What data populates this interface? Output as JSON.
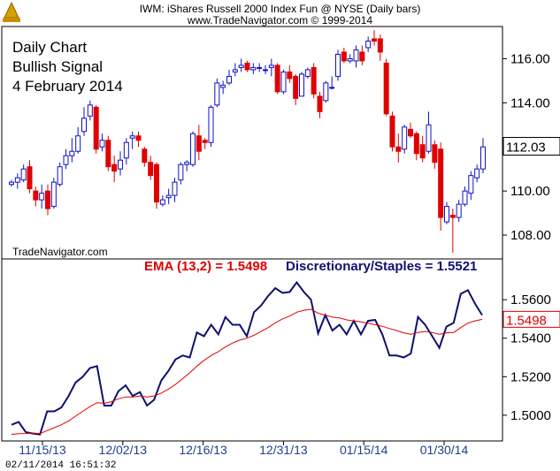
{
  "header": {
    "title": "IWM:  iShares Russell 2000 Index Fun @ NYSE  (Daily bars)",
    "copyright": "www.TradeNavigator.com © 1999-2014"
  },
  "annotation": {
    "line1": "Daily Chart",
    "line2": "Bullish Signal",
    "line3": "4 February 2014"
  },
  "watermark": "TradeNavigator.com",
  "timestamp": "02/11/2014 16:51:32",
  "colors": {
    "up": "#1010c8",
    "down": "#e00000",
    "ratio_line": "#101070",
    "ema_line": "#e00000"
  },
  "chart_data": [
    {
      "type": "candlestick",
      "title": "IWM:  iShares Russell 2000 Index Fun @ NYSE  (Daily bars)",
      "ylim": [
        107,
        117.3
      ],
      "yticks": [
        "116.00",
        "114.00",
        "112.00",
        "110.00",
        "108.00"
      ],
      "last_price_label": "112.03",
      "last_price": 112.03,
      "bars": [
        [
          110.3,
          110.5,
          110.2,
          110.4
        ],
        [
          110.4,
          110.8,
          110.1,
          110.6
        ],
        [
          110.5,
          111.2,
          110.4,
          111.0
        ],
        [
          111.1,
          111.4,
          109.9,
          110.1
        ],
        [
          110.0,
          110.2,
          109.3,
          109.6
        ],
        [
          109.6,
          110.3,
          109.2,
          109.9
        ],
        [
          110.0,
          110.3,
          108.9,
          109.2
        ],
        [
          109.3,
          110.6,
          109.2,
          110.4
        ],
        [
          110.3,
          111.3,
          110.2,
          111.1
        ],
        [
          111.2,
          111.9,
          111.0,
          111.6
        ],
        [
          111.6,
          112.4,
          111.3,
          111.8
        ],
        [
          111.8,
          112.9,
          111.7,
          112.5
        ],
        [
          112.7,
          113.8,
          112.5,
          113.3
        ],
        [
          113.4,
          114.1,
          113.2,
          113.9
        ],
        [
          113.8,
          113.9,
          111.7,
          111.9
        ],
        [
          112.0,
          112.6,
          111.8,
          112.3
        ],
        [
          112.3,
          112.5,
          110.9,
          111.1
        ],
        [
          111.2,
          111.6,
          110.4,
          110.9
        ],
        [
          111.0,
          111.8,
          110.7,
          111.4
        ],
        [
          111.5,
          112.4,
          111.2,
          112.2
        ],
        [
          112.4,
          112.7,
          111.9,
          112.5
        ],
        [
          112.5,
          112.7,
          112.0,
          112.3
        ],
        [
          111.9,
          112.0,
          111.1,
          111.3
        ],
        [
          111.3,
          111.6,
          110.5,
          110.7
        ],
        [
          111.2,
          111.3,
          109.2,
          109.5
        ],
        [
          109.4,
          109.8,
          109.3,
          109.6
        ],
        [
          109.7,
          110.1,
          109.4,
          109.8
        ],
        [
          109.8,
          110.6,
          109.5,
          110.4
        ],
        [
          110.5,
          111.3,
          110.3,
          111.2
        ],
        [
          111.2,
          111.4,
          110.9,
          111.3
        ],
        [
          111.2,
          112.7,
          111.1,
          112.6
        ],
        [
          112.5,
          113.0,
          111.4,
          111.8
        ],
        [
          112.3,
          112.4,
          111.9,
          112.2
        ],
        [
          112.2,
          113.9,
          112.0,
          113.8
        ],
        [
          113.9,
          115.1,
          113.8,
          114.9
        ],
        [
          114.7,
          115.0,
          114.4,
          114.8
        ],
        [
          114.9,
          115.5,
          114.8,
          115.2
        ],
        [
          115.4,
          115.8,
          115.2,
          115.5
        ],
        [
          115.6,
          116.0,
          115.4,
          115.7
        ],
        [
          115.8,
          115.9,
          115.4,
          115.5
        ],
        [
          115.5,
          115.8,
          115.3,
          115.6
        ],
        [
          115.6,
          115.8,
          115.4,
          115.6
        ],
        [
          115.5,
          115.7,
          115.3,
          115.5
        ],
        [
          115.6,
          116.0,
          115.2,
          115.7
        ],
        [
          115.7,
          115.8,
          114.4,
          114.5
        ],
        [
          114.5,
          115.5,
          114.4,
          115.4
        ],
        [
          115.4,
          115.7,
          114.9,
          115.1
        ],
        [
          115.2,
          115.3,
          113.9,
          114.2
        ],
        [
          114.3,
          115.4,
          114.3,
          115.3
        ],
        [
          115.2,
          115.6,
          115.1,
          115.5
        ],
        [
          115.6,
          115.8,
          114.2,
          114.4
        ],
        [
          114.3,
          114.5,
          113.3,
          113.6
        ],
        [
          114.1,
          115.0,
          114.0,
          114.9
        ],
        [
          114.7,
          115.2,
          114.6,
          114.7
        ],
        [
          115.2,
          116.4,
          115.0,
          116.2
        ],
        [
          116.3,
          116.5,
          115.8,
          115.9
        ],
        [
          115.9,
          116.2,
          115.8,
          116.0
        ],
        [
          115.9,
          116.6,
          115.6,
          116.4
        ],
        [
          116.3,
          116.6,
          115.7,
          115.9
        ],
        [
          116.5,
          117.0,
          116.3,
          116.8
        ],
        [
          116.9,
          117.3,
          116.6,
          116.8
        ],
        [
          116.9,
          117.1,
          115.9,
          116.3
        ],
        [
          115.8,
          116.0,
          113.4,
          113.5
        ],
        [
          113.4,
          113.6,
          111.8,
          112.0
        ],
        [
          112.0,
          112.6,
          111.3,
          111.8
        ],
        [
          111.9,
          113.0,
          111.7,
          112.9
        ],
        [
          112.8,
          113.1,
          112.4,
          112.5
        ],
        [
          112.6,
          112.7,
          111.4,
          111.7
        ],
        [
          112.1,
          112.5,
          111.3,
          111.5
        ],
        [
          111.8,
          113.6,
          111.7,
          113.0
        ],
        [
          112.1,
          112.3,
          111.0,
          111.3
        ],
        [
          111.9,
          112.2,
          108.2,
          108.8
        ],
        [
          108.6,
          109.5,
          108.5,
          109.3
        ],
        [
          108.9,
          109.2,
          107.2,
          108.8
        ],
        [
          108.8,
          109.6,
          108.6,
          109.4
        ],
        [
          109.4,
          110.2,
          109.3,
          110.0
        ],
        [
          109.9,
          110.9,
          109.6,
          110.7
        ],
        [
          110.6,
          111.2,
          110.4,
          111.0
        ],
        [
          111.0,
          112.4,
          110.8,
          112.0
        ]
      ]
    },
    {
      "type": "line",
      "legend": [
        "EMA (13,2) = 1.5498",
        "Discretionary/Staples = 1.5521"
      ],
      "ylim": [
        1.488,
        1.572
      ],
      "yticks": [
        "1.5600",
        "1.5400",
        "1.5200",
        "1.5000"
      ],
      "last_value_label": "1.5498",
      "last_value": 1.5498,
      "xticks": [
        "11/15/13",
        "12/02/13",
        "12/16/13",
        "12/31/13",
        "01/15/14",
        "01/30/14"
      ],
      "series": [
        {
          "name": "Discretionary/Staples",
          "values": [
            1.495,
            1.4965,
            1.4912,
            1.4905,
            1.49,
            1.502,
            1.502,
            1.504,
            1.51,
            1.517,
            1.52,
            1.5245,
            1.5255,
            1.505,
            1.505,
            1.5125,
            1.5155,
            1.51,
            1.512,
            1.505,
            1.508,
            1.518,
            1.523,
            1.529,
            1.531,
            1.53,
            1.543,
            1.541,
            1.547,
            1.542,
            1.551,
            1.547,
            1.547,
            1.541,
            1.5535,
            1.557,
            1.562,
            1.566,
            1.5635,
            1.564,
            1.569,
            1.564,
            1.56,
            1.5425,
            1.552,
            1.544,
            1.547,
            1.542,
            1.549,
            1.542,
            1.549,
            1.5495,
            1.542,
            1.531,
            1.531,
            1.53,
            1.532,
            1.551,
            1.547,
            1.541,
            1.535,
            1.546,
            1.548,
            1.563,
            1.565,
            1.558,
            1.552
          ]
        },
        {
          "name": "EMA (13,2)",
          "values": [
            1.49,
            1.4904,
            1.4905,
            1.4907,
            1.4905,
            1.492,
            1.4935,
            1.495,
            1.497,
            1.4995,
            1.502,
            1.5045,
            1.5065,
            1.5062,
            1.507,
            1.5085,
            1.5095,
            1.5095,
            1.51,
            1.5095,
            1.51,
            1.5115,
            1.5135,
            1.516,
            1.519,
            1.522,
            1.5255,
            1.5285,
            1.531,
            1.533,
            1.5355,
            1.5375,
            1.539,
            1.54,
            1.5415,
            1.5435,
            1.5455,
            1.548,
            1.55,
            1.5515,
            1.5535,
            1.5545,
            1.555,
            1.553,
            1.552,
            1.551,
            1.5505,
            1.5495,
            1.549,
            1.5485,
            1.5478,
            1.547,
            1.5462,
            1.545,
            1.544,
            1.5428,
            1.542,
            1.543,
            1.5435,
            1.543,
            1.542,
            1.5428,
            1.543,
            1.5455,
            1.5478,
            1.549,
            1.5498
          ]
        }
      ]
    }
  ]
}
